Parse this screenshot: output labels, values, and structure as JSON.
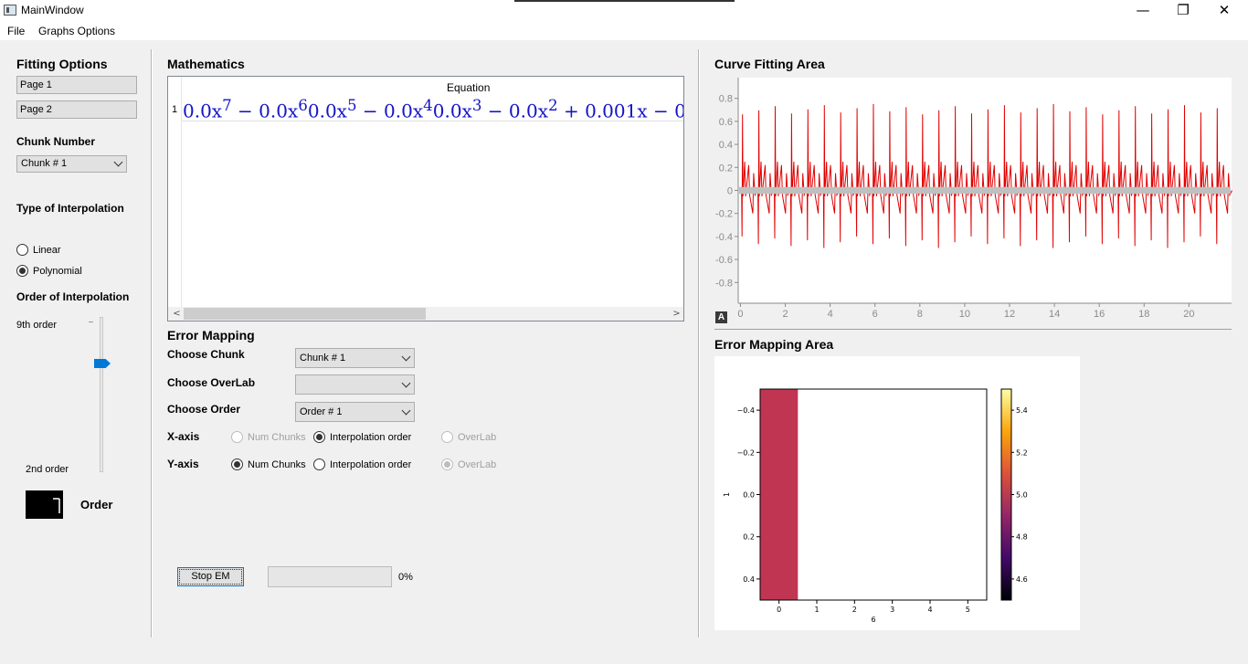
{
  "window": {
    "title": "MainWindow",
    "minimize_glyph": "—",
    "maximize_glyph": "❐",
    "close_glyph": "✕"
  },
  "menu": [
    "File",
    "Graphs Options"
  ],
  "left_panel": {
    "heading": "Fitting Options",
    "page_buttons": [
      "Page 1",
      "Page 2"
    ],
    "chunk_number_label": "Chunk Number",
    "chunk_select": "Chunk # 1",
    "interp_type_label": "Type of Interpolation",
    "interp_options": [
      {
        "label": "Linear",
        "checked": false
      },
      {
        "label": "Polynomial",
        "checked": true
      }
    ],
    "order_label": "Order of Interpolation",
    "slider_max_label": "9th order",
    "slider_min_label": "2nd order",
    "slider_value": 7,
    "lcd_value": "7",
    "lcd_caption": "Order"
  },
  "mathematics": {
    "heading": "Mathematics",
    "table_header": "Equation",
    "row_number": "1",
    "equation_html": "0.0x<sup>7</sup> − 0.0x<sup>6</sup>0.0x<sup>5</sup> − 0.0x<sup>4</sup>0.0x<sup>3</sup> − 0.0x<sup>2</sup> + 0.001x − 0"
  },
  "error_mapping": {
    "heading": "Error Mapping",
    "choose_chunk_label": "Choose Chunk",
    "choose_chunk_value": "Chunk # 1",
    "choose_overlab_label": "Choose OverLab",
    "choose_overlab_value": "",
    "choose_order_label": "Choose Order",
    "choose_order_value": "Order # 1",
    "xaxis_label": "X-axis",
    "yaxis_label": "Y-axis",
    "xaxis_options": [
      {
        "label": "Num Chunks",
        "checked": false,
        "disabled": true
      },
      {
        "label": "Interpolation order",
        "checked": true,
        "disabled": false
      },
      {
        "label": "OverLab",
        "checked": false,
        "disabled": true
      }
    ],
    "yaxis_options": [
      {
        "label": "Num Chunks",
        "checked": true,
        "disabled": false
      },
      {
        "label": "Interpolation order",
        "checked": false,
        "disabled": false
      },
      {
        "label": "OverLab",
        "checked": true,
        "disabled": true
      }
    ],
    "stop_button": "Stop EM",
    "progress": 0,
    "progress_text": "0%"
  },
  "curve_fitting": {
    "heading": "Curve Fitting Area",
    "auto_button": "A"
  },
  "error_map_area": {
    "heading": "Error Mapping Area"
  },
  "chart_data": [
    {
      "type": "line",
      "title": "",
      "xlabel": "",
      "ylabel": "",
      "xlim": [
        -0.1,
        21.9
      ],
      "ylim": [
        -0.98,
        0.98
      ],
      "xticks": [
        0,
        2,
        4,
        6,
        8,
        10,
        12,
        14,
        16,
        18,
        20
      ],
      "yticks": [
        0.8,
        0.6,
        0.4,
        0.2,
        0,
        -0.2,
        -0.4,
        -0.6,
        -0.8
      ],
      "series": [
        {
          "color": "#e00000",
          "pattern": "periodic spikes",
          "period": 0.73,
          "pos_peak": 0.75,
          "neg_peak": -0.5
        },
        {
          "color": "#c0c0c0",
          "pattern": "flat band near zero",
          "band": [
            -0.03,
            0.03
          ]
        }
      ]
    },
    {
      "type": "heatmap",
      "xlabel": "6",
      "ylabel": "1",
      "xlim": [
        -0.5,
        5.5
      ],
      "ylim": [
        -0.5,
        0.5
      ],
      "xticks": [
        0,
        1,
        2,
        3,
        4,
        5
      ],
      "yticks": [
        -0.4,
        -0.2,
        0.0,
        0.2,
        0.4
      ],
      "cells": [
        {
          "x": 0,
          "y": 0,
          "value": 5.0
        }
      ],
      "colorbar": {
        "colormap": "inferno",
        "range": [
          4.5,
          5.5
        ],
        "ticks": [
          4.6,
          4.8,
          5.0,
          5.2,
          5.4
        ]
      }
    }
  ]
}
